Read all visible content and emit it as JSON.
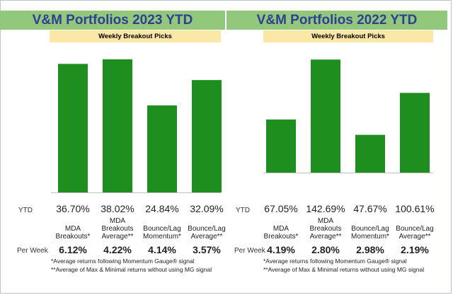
{
  "chart_data": [
    {
      "type": "bar",
      "title": "V&M Portfolios 2023 YTD",
      "subtitle": "Weekly Breakout Picks",
      "categories": [
        "MDA\nBreakouts*",
        "MDA\nBreakouts\nAverage**",
        "Bounce/Lag\nMomentum*",
        "Bounce/Lag\nAverage**"
      ],
      "values": [
        36.7,
        38.02,
        24.84,
        32.09
      ],
      "ytd_labels": [
        "36.70%",
        "38.02%",
        "24.84%",
        "32.09%"
      ],
      "per_week_labels": [
        "6.12%",
        "4.22%",
        "4.14%",
        "3.57%"
      ],
      "row_label_ytd": "YTD",
      "row_label_per_week": "Per Week",
      "notes": [
        "*Average returns following Momentum Gauge® signal",
        "**Average of Max & Minimal returns without using MG signal"
      ],
      "bar_color": "#1e8e1e",
      "ylim": [
        0,
        40
      ]
    },
    {
      "type": "bar",
      "title": "V&M Portfolios 2022 YTD",
      "subtitle": "Weekly Breakout Picks",
      "categories": [
        "MDA\nBreakouts*",
        "MDA\nBreakouts\nAverage**",
        "Bounce/Lag\nMomentum*",
        "Bounce/Lag\nAverage**"
      ],
      "values": [
        67.05,
        142.69,
        47.67,
        100.61
      ],
      "ytd_labels": [
        "67.05%",
        "142.69%",
        "47.67%",
        "100.61%"
      ],
      "per_week_labels": [
        "4.19%",
        "2.80%",
        "2.98%",
        "2.19%"
      ],
      "row_label_ytd": "YTD",
      "row_label_per_week": "Per Week",
      "notes": [
        "*Average returns following Momentum Gauge® signal",
        "**Average of Max & Minimal returns without using MG signal"
      ],
      "bar_color": "#1e8e1e",
      "ylim": [
        0,
        150
      ]
    }
  ]
}
